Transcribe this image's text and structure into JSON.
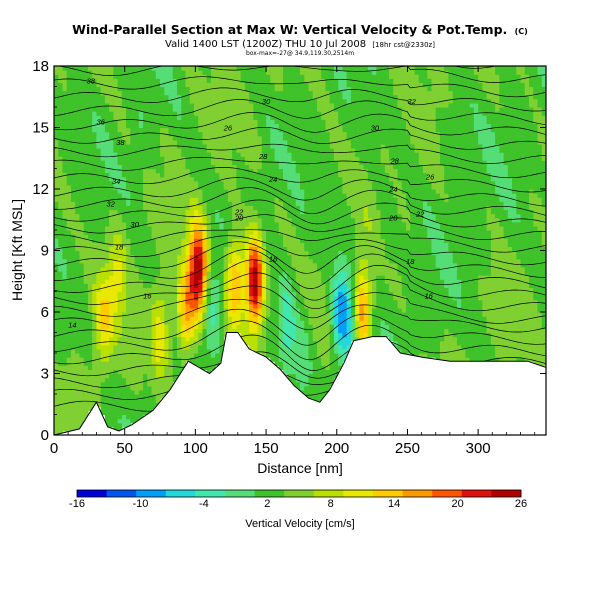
{
  "chart_data": {
    "type": "heatmap",
    "title": "Wind-Parallel Section at Max W: Vertical Velocity & Pot.Temp.",
    "title_suffix": "(C)",
    "subtitle": "Valid 1400 LST (1200Z) THU 10 Jul 2008",
    "subtitle_suffix": "[18hr cst@2330z]",
    "subtitle2": "box-max=-27@ 34.9,119.30,2514m",
    "xlabel": "Distance [nm]",
    "ylabel": "Height [Kft MSL]",
    "xlim": [
      0,
      348
    ],
    "ylim": [
      0,
      18
    ],
    "x_ticks": [
      0,
      50,
      100,
      150,
      200,
      250,
      300
    ],
    "y_ticks": [
      0,
      3,
      6,
      9,
      12,
      15,
      18
    ],
    "colorbar": {
      "label": "Vertical Velocity [cm/s]",
      "ticks": [
        -16,
        -10,
        -4,
        2,
        8,
        14,
        20,
        26
      ],
      "range": [
        -16,
        26
      ],
      "colors": [
        "#0000d8",
        "#0055f0",
        "#00a0f8",
        "#22d8d8",
        "#40e8b0",
        "#55dd77",
        "#3fc22a",
        "#7fd030",
        "#b8e000",
        "#e8e800",
        "#ffcc00",
        "#ff9900",
        "#ff5500",
        "#e01010",
        "#b00000"
      ]
    },
    "velocity_features": [
      {
        "x": 35,
        "z": 5.5,
        "w": 8
      },
      {
        "x": 45,
        "z": 8.0,
        "w": 6
      },
      {
        "x": 75,
        "z": 5.0,
        "w": 8
      },
      {
        "x": 93,
        "z": 6.0,
        "w": 12
      },
      {
        "x": 102,
        "z": 8.0,
        "w": 22
      },
      {
        "x": 112,
        "z": 6.5,
        "w": -6
      },
      {
        "x": 128,
        "z": 7.5,
        "w": 13
      },
      {
        "x": 142,
        "z": 7.5,
        "w": 24
      },
      {
        "x": 165,
        "z": 5.5,
        "w": -7
      },
      {
        "x": 176,
        "z": 4.0,
        "w": -4
      },
      {
        "x": 203,
        "z": 6.0,
        "w": -12
      },
      {
        "x": 210,
        "z": 5.0,
        "w": -6
      },
      {
        "x": 218,
        "z": 6.0,
        "w": 14
      },
      {
        "x": 235,
        "z": 10.0,
        "w": -2
      },
      {
        "x": 60,
        "z": 14.0,
        "w": -2
      },
      {
        "x": 150,
        "z": 12.0,
        "w": -2
      },
      {
        "x": 280,
        "z": 14.0,
        "w": -2
      }
    ],
    "terrain": [
      [
        0,
        0
      ],
      [
        18,
        0.3
      ],
      [
        30,
        1.6
      ],
      [
        38,
        0.4
      ],
      [
        46,
        0.2
      ],
      [
        55,
        0.5
      ],
      [
        70,
        1.2
      ],
      [
        82,
        2.2
      ],
      [
        95,
        3.6
      ],
      [
        110,
        3.0
      ],
      [
        118,
        3.5
      ],
      [
        122,
        5.0
      ],
      [
        130,
        5.0
      ],
      [
        138,
        4.2
      ],
      [
        150,
        3.8
      ],
      [
        160,
        3.2
      ],
      [
        170,
        2.4
      ],
      [
        180,
        1.8
      ],
      [
        188,
        1.6
      ],
      [
        195,
        2.2
      ],
      [
        205,
        3.5
      ],
      [
        212,
        4.6
      ],
      [
        225,
        4.8
      ],
      [
        235,
        4.8
      ],
      [
        245,
        4.0
      ],
      [
        260,
        3.8
      ],
      [
        280,
        3.6
      ],
      [
        335,
        3.6
      ],
      [
        348,
        3.3
      ]
    ],
    "theta_labels": [
      {
        "text": "38",
        "x": 26,
        "z": 17.3
      },
      {
        "text": "30",
        "x": 150,
        "z": 16.3
      },
      {
        "text": "32",
        "x": 253,
        "z": 16.3
      },
      {
        "text": "36",
        "x": 33,
        "z": 15.3
      },
      {
        "text": "26",
        "x": 123,
        "z": 15.0
      },
      {
        "text": "30",
        "x": 227,
        "z": 15.0
      },
      {
        "text": "38",
        "x": 47,
        "z": 14.3
      },
      {
        "text": "28",
        "x": 148,
        "z": 13.6
      },
      {
        "text": "28",
        "x": 241,
        "z": 13.4
      },
      {
        "text": "34",
        "x": 44,
        "z": 12.4
      },
      {
        "text": "24",
        "x": 155,
        "z": 12.5
      },
      {
        "text": "26",
        "x": 266,
        "z": 12.6
      },
      {
        "text": "32",
        "x": 40,
        "z": 11.3
      },
      {
        "text": "24",
        "x": 240,
        "z": 12.0
      },
      {
        "text": "22",
        "x": 131,
        "z": 10.9
      },
      {
        "text": "22",
        "x": 259,
        "z": 10.8
      },
      {
        "text": "30",
        "x": 57,
        "z": 10.3
      },
      {
        "text": "20",
        "x": 131,
        "z": 10.6
      },
      {
        "text": "20",
        "x": 240,
        "z": 10.6
      },
      {
        "text": "18",
        "x": 46,
        "z": 9.2
      },
      {
        "text": "18",
        "x": 155,
        "z": 8.6
      },
      {
        "text": "18",
        "x": 252,
        "z": 8.5
      },
      {
        "text": "16",
        "x": 66,
        "z": 6.8
      },
      {
        "text": "16",
        "x": 265,
        "z": 6.8
      },
      {
        "text": "14",
        "x": 13,
        "z": 5.4
      }
    ]
  }
}
